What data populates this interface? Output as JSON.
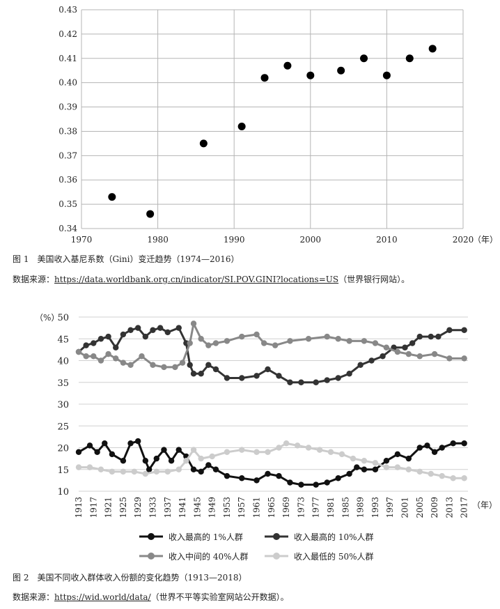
{
  "figure1": {
    "caption": "图 1　美国收入基尼系数（Gini）变迁趋势（1974—2016）",
    "source_label": "数据来源：",
    "source_url": "https://data.worldbank.org.cn/indicator/SI.POV.GINI?locations=US",
    "source_note": "（世界银行网站）。",
    "x_unit": "（年）"
  },
  "figure2": {
    "caption": "图 2　美国不同收入群体收入份额的变化趋势（1913—2018）",
    "source_label": "数据来源：",
    "source_url": "https://wid.world/data/",
    "source_note": "（世界不平等实验室网站公开数据）。",
    "y_unit": "（%）",
    "x_unit": "（年）"
  },
  "chart_data": [
    {
      "type": "scatter",
      "title": "",
      "xlabel": "（年）",
      "ylabel": "",
      "xlim": [
        1970,
        2020
      ],
      "ylim": [
        0.34,
        0.43
      ],
      "grid": true,
      "x_ticks": [
        1970,
        1980,
        1990,
        2000,
        2010,
        2020
      ],
      "y_ticks": [
        "0.34",
        "0.35",
        "0.36",
        "0.37",
        "0.38",
        "0.39",
        "0.40",
        "0.41",
        "0.42",
        "0.43"
      ],
      "x": [
        1974,
        1979,
        1986,
        1991,
        1994,
        1997,
        2000,
        2004,
        2007,
        2010,
        2013,
        2016
      ],
      "y": [
        0.353,
        0.346,
        0.375,
        0.382,
        0.402,
        0.407,
        0.403,
        0.405,
        0.41,
        0.403,
        0.41,
        0.414
      ],
      "colors": {
        "marker": "#000000",
        "grid": "#b5b5b5"
      }
    },
    {
      "type": "line",
      "title": "",
      "xlabel": "（年）",
      "ylabel": "（%）",
      "xlim": [
        1913,
        2018
      ],
      "ylim": [
        10,
        50
      ],
      "grid": true,
      "legend_position": "bottom",
      "x_ticks": [
        1913,
        1917,
        1921,
        1925,
        1929,
        1933,
        1937,
        1941,
        1945,
        1949,
        1953,
        1957,
        1961,
        1965,
        1969,
        1973,
        1977,
        1981,
        1985,
        1989,
        1993,
        1997,
        2001,
        2005,
        2009,
        2013,
        2017
      ],
      "y_ticks": [
        10,
        15,
        20,
        25,
        30,
        35,
        40,
        45,
        50
      ],
      "series": [
        {
          "name": "收入最高的 1%人群",
          "color": "#111111",
          "points": [
            [
              1913,
              19
            ],
            [
              1916,
              20.5
            ],
            [
              1918,
              19
            ],
            [
              1920,
              21
            ],
            [
              1922,
              18.5
            ],
            [
              1925,
              17
            ],
            [
              1927,
              21
            ],
            [
              1929,
              21.5
            ],
            [
              1931,
              17
            ],
            [
              1932,
              15
            ],
            [
              1934,
              17.5
            ],
            [
              1936,
              19.5
            ],
            [
              1938,
              17
            ],
            [
              1940,
              19.5
            ],
            [
              1942,
              18
            ],
            [
              1944,
              15
            ],
            [
              1946,
              14.5
            ],
            [
              1948,
              16
            ],
            [
              1950,
              15
            ],
            [
              1953,
              13.5
            ],
            [
              1957,
              13
            ],
            [
              1961,
              12.5
            ],
            [
              1964,
              14
            ],
            [
              1967,
              13.5
            ],
            [
              1970,
              12
            ],
            [
              1973,
              11.5
            ],
            [
              1977,
              11.5
            ],
            [
              1980,
              12
            ],
            [
              1983,
              13
            ],
            [
              1986,
              14
            ],
            [
              1988,
              15.5
            ],
            [
              1990,
              15
            ],
            [
              1993,
              15
            ],
            [
              1996,
              17
            ],
            [
              1999,
              18.5
            ],
            [
              2002,
              17.5
            ],
            [
              2005,
              20
            ],
            [
              2007,
              20.5
            ],
            [
              2009,
              19
            ],
            [
              2011,
              20
            ],
            [
              2014,
              21
            ],
            [
              2017,
              21
            ]
          ]
        },
        {
          "name": "收入最高的 10%人群",
          "color": "#333333",
          "points": [
            [
              1913,
              42
            ],
            [
              1915,
              43.5
            ],
            [
              1917,
              44
            ],
            [
              1919,
              45
            ],
            [
              1921,
              45.5
            ],
            [
              1923,
              43
            ],
            [
              1925,
              46
            ],
            [
              1927,
              47
            ],
            [
              1929,
              47.5
            ],
            [
              1931,
              45.5
            ],
            [
              1933,
              47
            ],
            [
              1935,
              47.5
            ],
            [
              1937,
              46.5
            ],
            [
              1940,
              47.5
            ],
            [
              1942,
              44
            ],
            [
              1943,
              39
            ],
            [
              1944,
              37
            ],
            [
              1946,
              37
            ],
            [
              1948,
              39
            ],
            [
              1950,
              38
            ],
            [
              1953,
              36
            ],
            [
              1957,
              36
            ],
            [
              1961,
              36.5
            ],
            [
              1964,
              38
            ],
            [
              1967,
              36.5
            ],
            [
              1970,
              35
            ],
            [
              1973,
              35
            ],
            [
              1977,
              35
            ],
            [
              1980,
              35.5
            ],
            [
              1983,
              36
            ],
            [
              1986,
              37
            ],
            [
              1989,
              39
            ],
            [
              1992,
              40
            ],
            [
              1995,
              41
            ],
            [
              1998,
              43
            ],
            [
              2001,
              43
            ],
            [
              2003,
              44
            ],
            [
              2005,
              45.5
            ],
            [
              2008,
              45.5
            ],
            [
              2010,
              45.5
            ],
            [
              2013,
              47
            ],
            [
              2017,
              47
            ]
          ]
        },
        {
          "name": "收入中间的 40%人群",
          "color": "#888888",
          "points": [
            [
              1913,
              42
            ],
            [
              1915,
              41
            ],
            [
              1917,
              41
            ],
            [
              1919,
              40
            ],
            [
              1921,
              41.5
            ],
            [
              1923,
              40.5
            ],
            [
              1925,
              39.5
            ],
            [
              1927,
              39
            ],
            [
              1930,
              41
            ],
            [
              1933,
              39
            ],
            [
              1936,
              38.5
            ],
            [
              1939,
              38.5
            ],
            [
              1941,
              39.5
            ],
            [
              1943,
              44
            ],
            [
              1944,
              48.5
            ],
            [
              1946,
              45
            ],
            [
              1948,
              43.5
            ],
            [
              1950,
              44
            ],
            [
              1953,
              44.5
            ],
            [
              1957,
              45.5
            ],
            [
              1961,
              46
            ],
            [
              1963,
              44
            ],
            [
              1966,
              43.5
            ],
            [
              1970,
              44.5
            ],
            [
              1975,
              45
            ],
            [
              1980,
              45.5
            ],
            [
              1983,
              45
            ],
            [
              1986,
              44.5
            ],
            [
              1990,
              44.5
            ],
            [
              1993,
              44
            ],
            [
              1996,
              43
            ],
            [
              1999,
              42
            ],
            [
              2002,
              41.5
            ],
            [
              2005,
              41
            ],
            [
              2009,
              41.5
            ],
            [
              2013,
              40.5
            ],
            [
              2017,
              40.5
            ]
          ]
        },
        {
          "name": "收入最低的 50%人群",
          "color": "#cccccc",
          "points": [
            [
              1913,
              15.5
            ],
            [
              1916,
              15.5
            ],
            [
              1919,
              15
            ],
            [
              1922,
              14.5
            ],
            [
              1925,
              14.5
            ],
            [
              1928,
              14.5
            ],
            [
              1931,
              14
            ],
            [
              1934,
              14.5
            ],
            [
              1937,
              14.5
            ],
            [
              1940,
              15
            ],
            [
              1942,
              17
            ],
            [
              1944,
              19.5
            ],
            [
              1946,
              17.5
            ],
            [
              1949,
              18
            ],
            [
              1953,
              19
            ],
            [
              1957,
              19.5
            ],
            [
              1961,
              19
            ],
            [
              1964,
              19
            ],
            [
              1967,
              20
            ],
            [
              1969,
              21
            ],
            [
              1972,
              20.5
            ],
            [
              1975,
              20
            ],
            [
              1978,
              19.5
            ],
            [
              1981,
              19
            ],
            [
              1984,
              18.5
            ],
            [
              1987,
              17.5
            ],
            [
              1990,
              17
            ],
            [
              1993,
              16.5
            ],
            [
              1996,
              15.5
            ],
            [
              1999,
              15.5
            ],
            [
              2002,
              15
            ],
            [
              2005,
              14.5
            ],
            [
              2008,
              14
            ],
            [
              2011,
              13.5
            ],
            [
              2014,
              13
            ],
            [
              2017,
              13
            ]
          ]
        }
      ]
    }
  ]
}
